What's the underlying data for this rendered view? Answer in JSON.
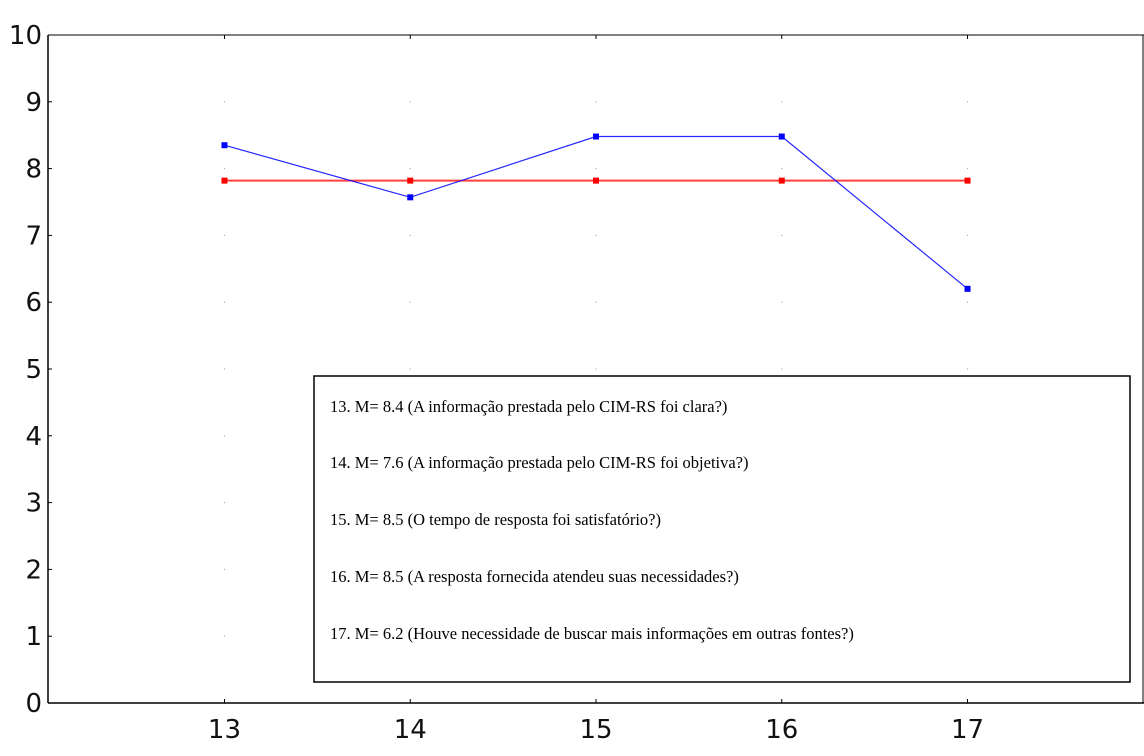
{
  "chart_data": {
    "type": "line",
    "title": "",
    "xlabel": "",
    "ylabel": "",
    "x": [
      13,
      14,
      15,
      16,
      17
    ],
    "xlim": [
      12.05,
      17.95
    ],
    "ylim": [
      0,
      10
    ],
    "yticks": [
      0,
      1,
      2,
      3,
      4,
      5,
      6,
      7,
      8,
      9,
      10
    ],
    "grid": true,
    "series": [
      {
        "values": [
          8.35,
          7.57,
          8.48,
          8.48,
          6.2
        ],
        "color": "#0000ff"
      },
      {
        "values": [
          7.82,
          7.82,
          7.82,
          7.82,
          7.82
        ],
        "color": "#ff0000"
      }
    ],
    "legend": {
      "placement": "bottom-right",
      "entries": [
        "13. M= 8.4 (A informação prestada pelo CIM-RS foi clara?)",
        "14. M= 7.6 (A informação prestada pelo CIM-RS foi objetiva?)",
        "15. M= 8.5 (O tempo de resposta foi satisfatório?)",
        "16. M= 8.5 (A resposta fornecida atendeu suas necessidades?)",
        "17. M= 6.2 (Houve necessidade de buscar mais informações em outras fontes?)"
      ]
    }
  }
}
